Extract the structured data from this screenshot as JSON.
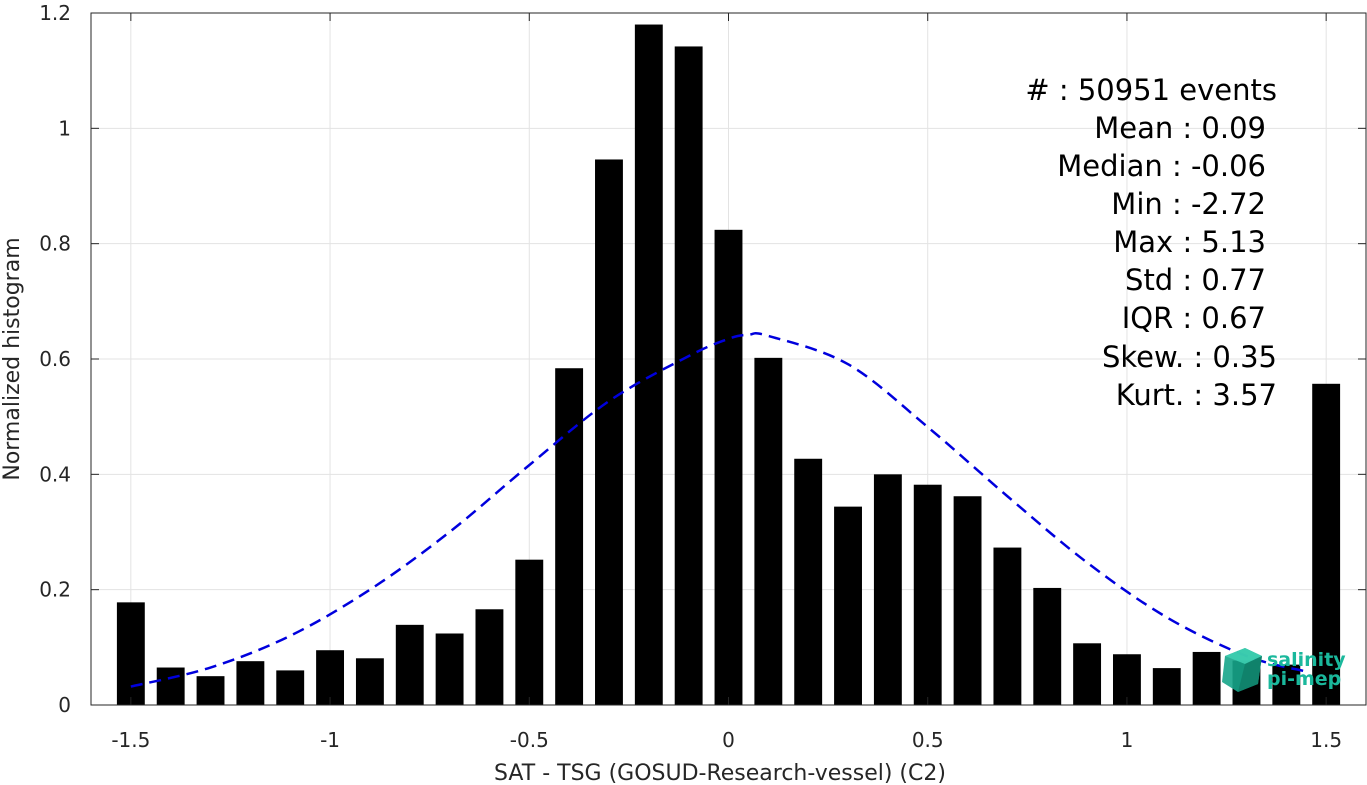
{
  "chart_data": {
    "type": "bar",
    "xlabel": "SAT - TSG (GOSUD-Research-vessel) (C2)",
    "ylabel": "Normalized histogram",
    "xlim": [
      -1.6,
      1.6
    ],
    "ylim": [
      0,
      1.2
    ],
    "grid": true,
    "xticks": [
      -1.5,
      -1,
      -0.5,
      0,
      0.5,
      1,
      1.5
    ],
    "xtick_labels": [
      "-1.5",
      "-1",
      "-0.5",
      "0",
      "0.5",
      "1",
      "1.5"
    ],
    "yticks": [
      0,
      0.2,
      0.4,
      0.6,
      0.8,
      1,
      1.2
    ],
    "ytick_labels": [
      "0",
      "0.2",
      "0.4",
      "0.6",
      "0.8",
      "1",
      "1.2"
    ],
    "bar_width": 0.07,
    "x": [
      -1.5,
      -1.4,
      -1.3,
      -1.2,
      -1.1,
      -1.0,
      -0.9,
      -0.8,
      -0.7,
      -0.6,
      -0.5,
      -0.4,
      -0.3,
      -0.2,
      -0.1,
      0.0,
      0.1,
      0.2,
      0.3,
      0.4,
      0.5,
      0.6,
      0.7,
      0.8,
      0.9,
      1.0,
      1.1,
      1.2,
      1.3,
      1.4,
      1.5
    ],
    "values": [
      0.178,
      0.065,
      0.05,
      0.076,
      0.06,
      0.095,
      0.081,
      0.139,
      0.124,
      0.166,
      0.252,
      0.584,
      0.946,
      1.18,
      1.142,
      0.824,
      0.602,
      0.427,
      0.344,
      0.4,
      0.382,
      0.362,
      0.273,
      0.203,
      0.107,
      0.088,
      0.064,
      0.092,
      0.077,
      0.07,
      0.557
    ],
    "bar_color": "#000000",
    "fit_curve": {
      "style": "dashed",
      "color": "#0000dd",
      "x": [
        -1.5,
        -1.3,
        -1.1,
        -0.9,
        -0.7,
        -0.5,
        -0.3,
        -0.1,
        0.0,
        0.05,
        0.1,
        0.3,
        0.5,
        0.7,
        0.9,
        1.1,
        1.3,
        1.45
      ],
      "y": [
        0.032,
        0.065,
        0.12,
        0.2,
        0.3,
        0.416,
        0.527,
        0.605,
        0.635,
        0.642,
        0.64,
        0.591,
        0.482,
        0.362,
        0.247,
        0.152,
        0.085,
        0.058
      ]
    }
  },
  "stats": {
    "events": "#  : 50951 events",
    "mean": "Mean : 0.09",
    "median": "Median : -0.06",
    "min": "Min : -2.72",
    "max": "Max : 5.13",
    "std": "Std : 0.77",
    "iqr": "IQR : 0.67",
    "skew": "Skew. : 0.35",
    "kurt": "Kurt. : 3.57"
  },
  "logo": {
    "line1": "salinity",
    "line2": "pi-mep",
    "color": "#1ab89c"
  }
}
